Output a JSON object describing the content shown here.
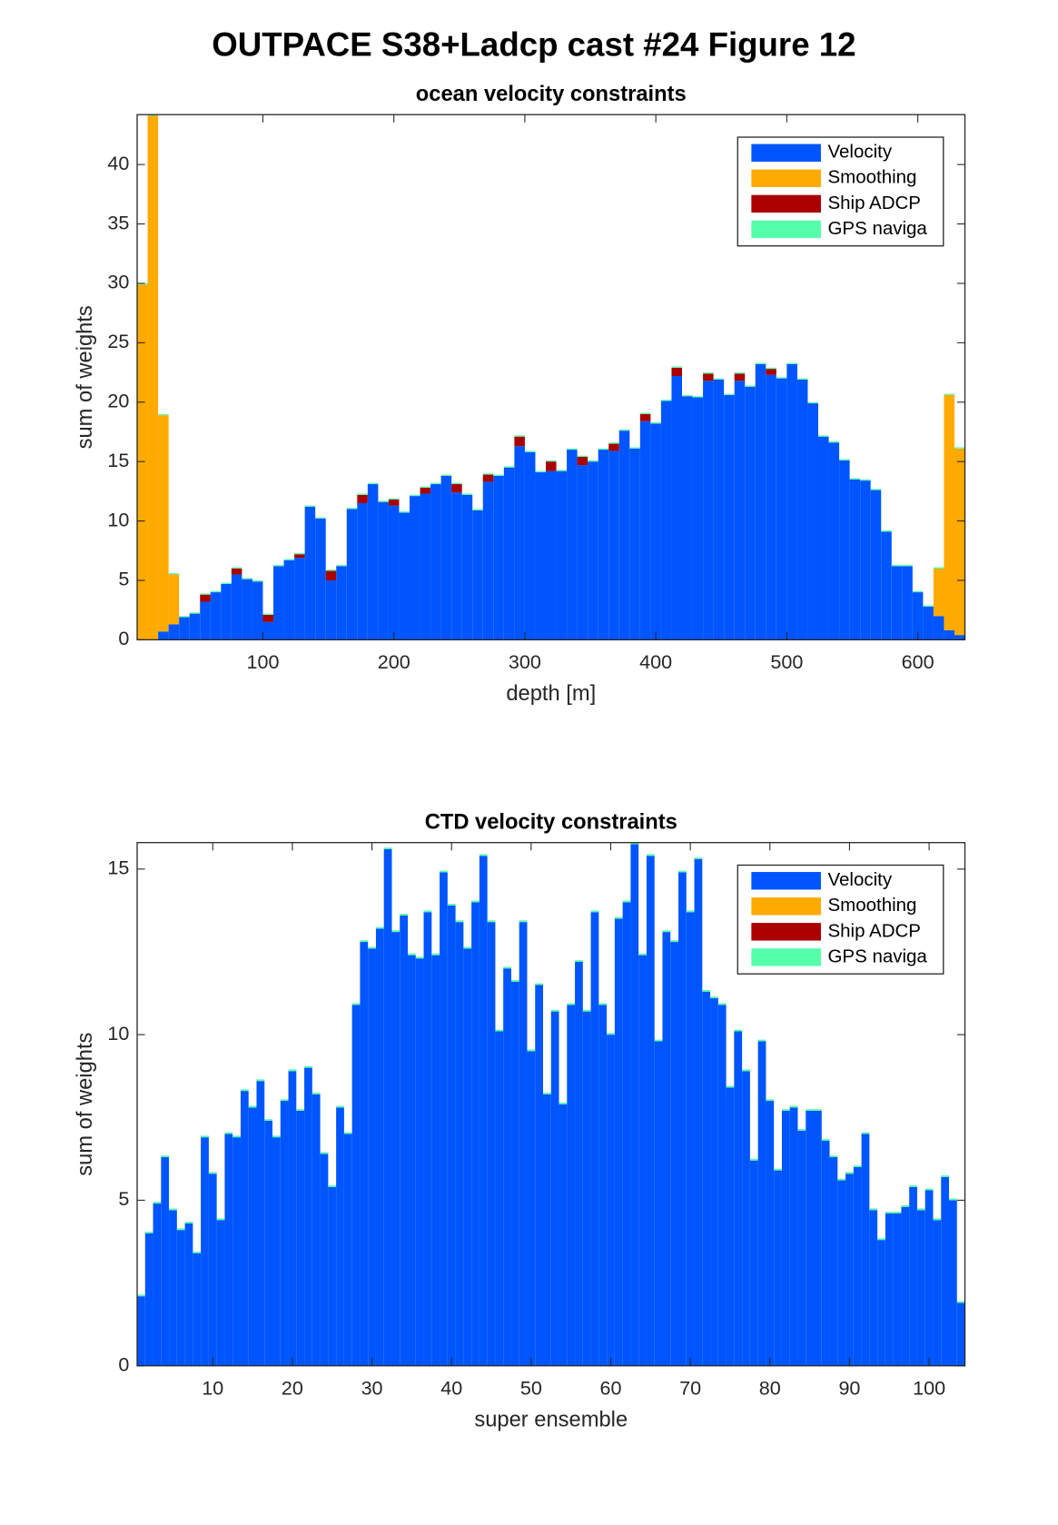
{
  "title": "OUTPACE S38+Ladcp cast #24  Figure 12",
  "chart_data": [
    {
      "type": "histogram",
      "stacked": true,
      "title": "ocean velocity constraints",
      "x_label": "depth [m]",
      "y_label": "sum of weights",
      "legend": "northeast",
      "bins": [
        4,
        12,
        20,
        28,
        36,
        44,
        52,
        60,
        68,
        76,
        84,
        92,
        100,
        108,
        116,
        124,
        132,
        140,
        148,
        156,
        164,
        172,
        180,
        188,
        196,
        204,
        212,
        220,
        228,
        236,
        244,
        252,
        260,
        268,
        276,
        284,
        292,
        300,
        308,
        316,
        324,
        332,
        340,
        348,
        356,
        364,
        372,
        380,
        388,
        396,
        404,
        412,
        420,
        428,
        436,
        444,
        452,
        460,
        468,
        476,
        484,
        492,
        500,
        508,
        516,
        524,
        532,
        540,
        548,
        556,
        564,
        572,
        580,
        588,
        596,
        604,
        612,
        620,
        628,
        636
      ],
      "xlim": [
        4,
        636
      ],
      "xticks": [
        100,
        200,
        300,
        400,
        500,
        600
      ],
      "ylim": [
        0,
        44.2
      ],
      "yticks": [
        0,
        5,
        10,
        15,
        20,
        25,
        30,
        35,
        40
      ],
      "series": [
        {
          "name": "Velocity",
          "color": "#0055ff",
          "values": [
            0,
            0,
            0.7,
            1.3,
            1.9,
            2.2,
            3.2,
            4.0,
            4.7,
            5.5,
            5.1,
            4.9,
            1.5,
            6.2,
            6.7,
            6.9,
            11.2,
            10.2,
            5.0,
            6.2,
            11.0,
            11.5,
            13.1,
            11.6,
            11.3,
            10.7,
            12.1,
            12.3,
            13.1,
            13.8,
            12.4,
            12.2,
            10.9,
            13.3,
            13.8,
            14.5,
            16.3,
            15.8,
            14.1,
            14.2,
            14.2,
            16.0,
            14.7,
            15.0,
            16.0,
            15.9,
            17.6,
            16.1,
            18.4,
            18.2,
            20.1,
            22.2,
            20.5,
            20.4,
            21.8,
            21.9,
            20.6,
            21.8,
            21.3,
            23.2,
            22.3,
            22.0,
            23.2,
            21.9,
            19.9,
            17.1,
            16.6,
            15.1,
            13.5,
            13.4,
            12.6,
            9.1,
            6.2,
            6.2,
            4.0,
            2.8,
            2.0,
            0.8,
            0.4
          ]
        },
        {
          "name": "Smoothing",
          "color": "#ffaa00",
          "values": [
            29.9,
            44.1,
            18.2,
            4.2,
            0,
            0,
            0,
            0,
            0,
            0,
            0,
            0,
            0,
            0,
            0,
            0,
            0,
            0,
            0,
            0,
            0,
            0,
            0,
            0,
            0,
            0,
            0,
            0,
            0,
            0,
            0,
            0,
            0,
            0,
            0,
            0,
            0,
            0,
            0,
            0,
            0,
            0,
            0,
            0,
            0,
            0,
            0,
            0,
            0,
            0,
            0,
            0,
            0,
            0,
            0,
            0,
            0,
            0,
            0,
            0,
            0,
            0,
            0,
            0,
            0,
            0,
            0,
            0,
            0,
            0,
            0,
            0,
            0,
            0,
            0,
            0,
            4.0,
            19.8,
            15.7
          ]
        },
        {
          "name": "Ship ADCP",
          "color": "#aa0000",
          "values": [
            0,
            0,
            0,
            0,
            0,
            0,
            0.6,
            0,
            0,
            0.5,
            0,
            0,
            0.6,
            0,
            0,
            0.3,
            0,
            0,
            0.8,
            0,
            0,
            0.7,
            0,
            0,
            0.5,
            0,
            0,
            0.5,
            0,
            0,
            0.7,
            0,
            0,
            0.6,
            0,
            0,
            0.8,
            0,
            0,
            0.8,
            0,
            0,
            0.7,
            0,
            0,
            0.6,
            0,
            0,
            0.6,
            0,
            0,
            0.7,
            0,
            0,
            0.6,
            0,
            0,
            0.6,
            0,
            0,
            0.5,
            0,
            0,
            0,
            0,
            0,
            0,
            0,
            0,
            0,
            0,
            0,
            0,
            0,
            0,
            0,
            0,
            0,
            0
          ]
        },
        {
          "name": "GPS naviga",
          "color": "#55ffaa",
          "values": [
            0.1,
            0.1,
            0.1,
            0.1,
            0.1,
            0.1,
            0.1,
            0.1,
            0.1,
            0.1,
            0.1,
            0.1,
            0.1,
            0.1,
            0.1,
            0.1,
            0.1,
            0.1,
            0.1,
            0.1,
            0.1,
            0.1,
            0.1,
            0.1,
            0.1,
            0.1,
            0.1,
            0.1,
            0.1,
            0.1,
            0.1,
            0.1,
            0.1,
            0.1,
            0.1,
            0.1,
            0.1,
            0.1,
            0.1,
            0.1,
            0.1,
            0.1,
            0.1,
            0.1,
            0.1,
            0.1,
            0.1,
            0.1,
            0.1,
            0.1,
            0.1,
            0.1,
            0.1,
            0.1,
            0.1,
            0.1,
            0.1,
            0.1,
            0.1,
            0.1,
            0.1,
            0.1,
            0.1,
            0.1,
            0.1,
            0.1,
            0.1,
            0.1,
            0.1,
            0.1,
            0.1,
            0.1,
            0.1,
            0.1,
            0.1,
            0.1,
            0.1,
            0.1,
            0.1
          ]
        }
      ]
    },
    {
      "type": "histogram",
      "stacked": true,
      "title": "CTD velocity constraints",
      "x_label": "super ensemble",
      "y_label": "sum of weights",
      "legend": "northeast",
      "bins": [
        0.5,
        1.5,
        2.5,
        3.5,
        4.5,
        5.5,
        6.5,
        7.5,
        8.5,
        9.5,
        10.5,
        11.5,
        12.5,
        13.5,
        14.5,
        15.5,
        16.5,
        17.5,
        18.5,
        19.5,
        20.5,
        21.5,
        22.5,
        23.5,
        24.5,
        25.5,
        26.5,
        27.5,
        28.5,
        29.5,
        30.5,
        31.5,
        32.5,
        33.5,
        34.5,
        35.5,
        36.5,
        37.5,
        38.5,
        39.5,
        40.5,
        41.5,
        42.5,
        43.5,
        44.5,
        45.5,
        46.5,
        47.5,
        48.5,
        49.5,
        50.5,
        51.5,
        52.5,
        53.5,
        54.5,
        55.5,
        56.5,
        57.5,
        58.5,
        59.5,
        60.5,
        61.5,
        62.5,
        63.5,
        64.5,
        65.5,
        66.5,
        67.5,
        68.5,
        69.5,
        70.5,
        71.5,
        72.5,
        73.5,
        74.5,
        75.5,
        76.5,
        77.5,
        78.5,
        79.5,
        80.5,
        81.5,
        82.5,
        83.5,
        84.5,
        85.5,
        86.5,
        87.5,
        88.5,
        89.5,
        90.5,
        91.5,
        92.5,
        93.5,
        94.5,
        95.5,
        96.5,
        97.5,
        98.5,
        99.5,
        100.5,
        101.5,
        102.5,
        103.5,
        104.5
      ],
      "xlim": [
        0.5,
        104.5
      ],
      "xticks": [
        10,
        20,
        30,
        40,
        50,
        60,
        70,
        80,
        90,
        100
      ],
      "ylim": [
        0,
        15.8
      ],
      "yticks": [
        0,
        5,
        10,
        15
      ],
      "series": [
        {
          "name": "Velocity",
          "color": "#0055ff",
          "values": [
            2.1,
            4.0,
            4.9,
            6.3,
            4.7,
            4.1,
            4.3,
            3.4,
            6.9,
            5.8,
            4.4,
            7.0,
            6.9,
            8.3,
            7.8,
            8.6,
            7.4,
            6.9,
            8.0,
            8.9,
            7.7,
            9.0,
            8.2,
            6.4,
            5.4,
            7.8,
            7.0,
            10.9,
            12.8,
            12.6,
            13.2,
            15.6,
            13.1,
            13.6,
            12.4,
            12.3,
            13.7,
            12.4,
            14.9,
            13.9,
            13.4,
            12.6,
            14.0,
            15.4,
            13.4,
            10.1,
            12.0,
            11.6,
            13.4,
            9.5,
            11.5,
            8.2,
            10.7,
            7.9,
            10.9,
            12.2,
            10.7,
            13.7,
            10.9,
            10.0,
            13.5,
            14.0,
            15.75,
            12.4,
            15.4,
            9.8,
            13.1,
            12.8,
            14.9,
            13.7,
            15.3,
            11.3,
            11.1,
            10.9,
            8.4,
            10.1,
            8.9,
            6.2,
            9.8,
            8.0,
            5.9,
            7.7,
            7.8,
            7.1,
            7.7,
            7.7,
            6.8,
            6.3,
            5.6,
            5.8,
            6.0,
            7.0,
            4.7,
            3.8,
            4.6,
            4.6,
            4.8,
            5.4,
            4.7,
            5.3,
            4.4,
            5.7,
            5.0,
            1.9
          ]
        },
        {
          "name": "Smoothing",
          "color": "#ffaa00",
          "values": [
            0,
            0,
            0,
            0,
            0,
            0,
            0,
            0,
            0,
            0,
            0,
            0,
            0,
            0,
            0,
            0,
            0,
            0,
            0,
            0,
            0,
            0,
            0,
            0,
            0,
            0,
            0,
            0,
            0,
            0,
            0,
            0,
            0,
            0,
            0,
            0,
            0,
            0,
            0,
            0,
            0,
            0,
            0,
            0,
            0,
            0,
            0,
            0,
            0,
            0,
            0,
            0,
            0,
            0,
            0,
            0,
            0,
            0,
            0,
            0,
            0,
            0,
            0,
            0,
            0,
            0,
            0,
            0,
            0,
            0,
            0,
            0,
            0,
            0,
            0,
            0,
            0,
            0,
            0,
            0,
            0,
            0,
            0,
            0,
            0,
            0,
            0,
            0,
            0,
            0,
            0,
            0,
            0,
            0,
            0,
            0,
            0,
            0,
            0,
            0,
            0,
            0,
            0,
            0
          ]
        },
        {
          "name": "Ship ADCP",
          "color": "#aa0000",
          "values": [
            0,
            0,
            0,
            0,
            0,
            0,
            0,
            0,
            0,
            0,
            0,
            0,
            0,
            0,
            0,
            0,
            0,
            0,
            0,
            0,
            0,
            0,
            0,
            0,
            0,
            0,
            0,
            0,
            0,
            0,
            0,
            0,
            0,
            0,
            0,
            0,
            0,
            0,
            0,
            0,
            0,
            0,
            0,
            0,
            0,
            0,
            0,
            0,
            0,
            0,
            0,
            0,
            0,
            0,
            0,
            0,
            0,
            0,
            0,
            0,
            0,
            0,
            0,
            0,
            0,
            0,
            0,
            0,
            0,
            0,
            0,
            0,
            0,
            0,
            0,
            0,
            0,
            0,
            0,
            0,
            0,
            0,
            0,
            0,
            0,
            0,
            0,
            0,
            0,
            0,
            0,
            0,
            0,
            0,
            0,
            0,
            0,
            0,
            0,
            0,
            0,
            0,
            0,
            0
          ]
        },
        {
          "name": "GPS naviga",
          "color": "#55ffaa",
          "values": [
            0.05,
            0.05,
            0.05,
            0.05,
            0.05,
            0.05,
            0.05,
            0.05,
            0.05,
            0.05,
            0.05,
            0.05,
            0.05,
            0.05,
            0.05,
            0.05,
            0.05,
            0.05,
            0.05,
            0.05,
            0.05,
            0.05,
            0.05,
            0.05,
            0.05,
            0.05,
            0.05,
            0.05,
            0.05,
            0.05,
            0.05,
            0.05,
            0.05,
            0.05,
            0.05,
            0.05,
            0.05,
            0.05,
            0.05,
            0.05,
            0.05,
            0.05,
            0.05,
            0.05,
            0.05,
            0.05,
            0.05,
            0.05,
            0.05,
            0.05,
            0.05,
            0.05,
            0.05,
            0.05,
            0.05,
            0.05,
            0.05,
            0.05,
            0.05,
            0.05,
            0.05,
            0.05,
            0.05,
            0.05,
            0.05,
            0.05,
            0.05,
            0.05,
            0.05,
            0.05,
            0.05,
            0.05,
            0.05,
            0.05,
            0.05,
            0.05,
            0.05,
            0.05,
            0.05,
            0.05,
            0.05,
            0.05,
            0.05,
            0.05,
            0.05,
            0.05,
            0.05,
            0.05,
            0.05,
            0.05,
            0.05,
            0.05,
            0.05,
            0.05,
            0.05,
            0.05,
            0.05,
            0.05,
            0.05,
            0.05,
            0.05,
            0.05,
            0.05,
            0.05
          ]
        }
      ]
    }
  ]
}
